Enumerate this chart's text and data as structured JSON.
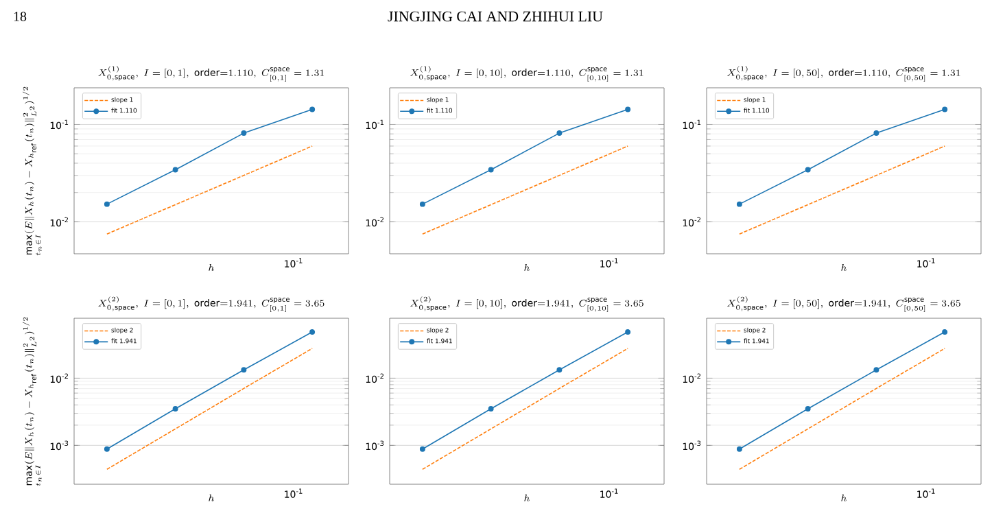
{
  "chart_data": [
    {
      "type": "other",
      "annotations": [
        "18",
        "JINGJING CAI AND ZHIHUI LIU"
      ]
    },
    {
      "type": "line",
      "title": "X^{(1)}_{0,\\mathrm{space}},\\ I=[0,1],\\ \\mathrm{order}{=}1.110,\\ C^{\\mathrm{space}}_{[0,1]}=1.31",
      "xlabel": "h",
      "ylabel": "\\max\\limits_{t_n\\in I}(E\\|X_h(t_n)-X_{h_{\\mathrm{ref}}}(t_n)\\|^2_{L^2})^{1/2}",
      "annotations": [
        "10$^{-1}$"
      ],
      "categories": [
        null,
        null,
        null,
        null
      ],
      "series": [
        {
          "name": "slope 1",
          "color": "#ff7f0e",
          "values": [
            0.0075,
            0.015,
            0.03,
            0.06
          ],
          "marker": "none",
          "line_style": "dashed"
        },
        {
          "name": "fit 1.110",
          "color": "#1f77b4",
          "values": [
            0.0152,
            0.0343,
            0.0815,
            0.143
          ],
          "marker": "circle",
          "line_style": "solid"
        }
      ],
      "ylim": [
        0.0047,
        0.238
      ],
      "yticks": [
        {
          "value": 0.01,
          "label": "10$^{-2}$"
        },
        {
          "value": 0.1,
          "label": "10$^{-1}$"
        }
      ],
      "log": "y",
      "grid": "y",
      "legend": "top left"
    },
    {
      "type": "line",
      "title": "X^{(1)}_{0,\\mathrm{space}},\\ I=[0,10],\\ \\mathrm{order}{=}1.110,\\ C^{\\mathrm{space}}_{[0,10]}=1.31",
      "xlabel": "h",
      "annotations": [
        "10$^{-1}$"
      ],
      "categories": [
        null,
        null,
        null,
        null
      ],
      "series": [
        {
          "name": "slope 1",
          "color": "#ff7f0e",
          "values": [
            0.0075,
            0.015,
            0.03,
            0.06
          ],
          "marker": "none",
          "line_style": "dashed"
        },
        {
          "name": "fit 1.110",
          "color": "#1f77b4",
          "values": [
            0.0152,
            0.0343,
            0.0815,
            0.143
          ],
          "marker": "circle",
          "line_style": "solid"
        }
      ],
      "ylim": [
        0.0047,
        0.238
      ],
      "yticks": [
        {
          "value": 0.01,
          "label": "10$^{-2}$"
        },
        {
          "value": 0.1,
          "label": "10$^{-1}$"
        }
      ],
      "log": "y",
      "grid": "y",
      "legend": "top left"
    },
    {
      "type": "line",
      "title": "X^{(1)}_{0,\\mathrm{space}},\\ I=[0,50],\\ \\mathrm{order}{=}1.110,\\ C^{\\mathrm{space}}_{[0,50]}=1.31",
      "xlabel": "h",
      "annotations": [
        "10$^{-1}$"
      ],
      "categories": [
        null,
        null,
        null,
        null
      ],
      "series": [
        {
          "name": "slope 1",
          "color": "#ff7f0e",
          "values": [
            0.0075,
            0.015,
            0.03,
            0.06
          ],
          "marker": "none",
          "line_style": "dashed"
        },
        {
          "name": "fit 1.110",
          "color": "#1f77b4",
          "values": [
            0.0152,
            0.0343,
            0.0815,
            0.143
          ],
          "marker": "circle",
          "line_style": "solid"
        }
      ],
      "ylim": [
        0.0047,
        0.238
      ],
      "yticks": [
        {
          "value": 0.01,
          "label": "10$^{-2}$"
        },
        {
          "value": 0.1,
          "label": "10$^{-1}$"
        }
      ],
      "log": "y",
      "grid": "y",
      "legend": "top left"
    },
    {
      "type": "line",
      "title": "X^{(2)}_{0,\\mathrm{space}},\\ I=[0,1],\\ \\mathrm{order}{=}1.941,\\ C^{\\mathrm{space}}_{[0,1]}=3.65",
      "xlabel": "h",
      "ylabel": "\\max\\limits_{t_n\\in I}(E\\|X_h(t_n)-X_{h_{\\mathrm{ref}}}(t_n)\\|^2_{L^2})^{1/2}",
      "annotations": [
        "10$^{-1}$"
      ],
      "categories": [
        null,
        null,
        null,
        null
      ],
      "series": [
        {
          "name": "slope 2",
          "color": "#ff7f0e",
          "values": [
            0.00044,
            0.00176,
            0.00704,
            0.0277
          ],
          "marker": "none",
          "line_style": "dashed"
        },
        {
          "name": "fit 1.941",
          "color": "#1f77b4",
          "values": [
            0.00088,
            0.0035,
            0.0133,
            0.0487
          ],
          "marker": "circle",
          "line_style": "solid"
        }
      ],
      "ylim": [
        0.000264,
        0.078
      ],
      "yticks": [
        {
          "value": 0.001,
          "label": "10$^{-3}$"
        },
        {
          "value": 0.01,
          "label": "10$^{-2}$"
        }
      ],
      "log": "y",
      "grid": "y",
      "legend": "top left"
    },
    {
      "type": "line",
      "title": "X^{(2)}_{0,\\mathrm{space}},\\ I=[0,10],\\ \\mathrm{order}{=}1.941,\\ C^{\\mathrm{space}}_{[0,10]}=3.65",
      "xlabel": "h",
      "annotations": [
        "10$^{-1}$"
      ],
      "categories": [
        null,
        null,
        null,
        null
      ],
      "series": [
        {
          "name": "slope 2",
          "color": "#ff7f0e",
          "values": [
            0.00044,
            0.00176,
            0.00704,
            0.0277
          ],
          "marker": "none",
          "line_style": "dashed"
        },
        {
          "name": "fit 1.941",
          "color": "#1f77b4",
          "values": [
            0.00088,
            0.0035,
            0.0133,
            0.0487
          ],
          "marker": "circle",
          "line_style": "solid"
        }
      ],
      "ylim": [
        0.000264,
        0.078
      ],
      "yticks": [
        {
          "value": 0.001,
          "label": "10$^{-3}$"
        },
        {
          "value": 0.01,
          "label": "10$^{-2}$"
        }
      ],
      "log": "y",
      "grid": "y",
      "legend": "top left"
    },
    {
      "type": "line",
      "title": "X^{(2)}_{0,\\mathrm{space}},\\ I=[0,50],\\ \\mathrm{order}{=}1.941,\\ C^{\\mathrm{space}}_{[0,50]}=3.65",
      "xlabel": "h",
      "annotations": [
        "10$^{-1}$"
      ],
      "categories": [
        null,
        null,
        null,
        null
      ],
      "series": [
        {
          "name": "slope 2",
          "color": "#ff7f0e",
          "values": [
            0.00044,
            0.00176,
            0.00704,
            0.0277
          ],
          "marker": "none",
          "line_style": "dashed"
        },
        {
          "name": "fit 1.941",
          "color": "#1f77b4",
          "values": [
            0.00088,
            0.0035,
            0.0133,
            0.0487
          ],
          "marker": "circle",
          "line_style": "solid"
        }
      ],
      "ylim": [
        0.000264,
        0.078
      ],
      "yticks": [
        {
          "value": 0.001,
          "label": "10$^{-3}$"
        },
        {
          "value": 0.01,
          "label": "10$^{-2}$"
        }
      ],
      "log": "y",
      "grid": "y",
      "legend": "top left"
    }
  ]
}
